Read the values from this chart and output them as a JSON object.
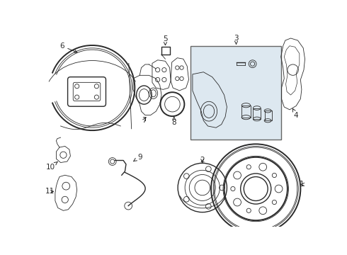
{
  "background_color": "#ffffff",
  "line_color": "#2a2a2a",
  "box_bg": "#dde8f0",
  "box_border": "#444444",
  "figsize": [
    4.9,
    3.6
  ],
  "dpi": 100
}
